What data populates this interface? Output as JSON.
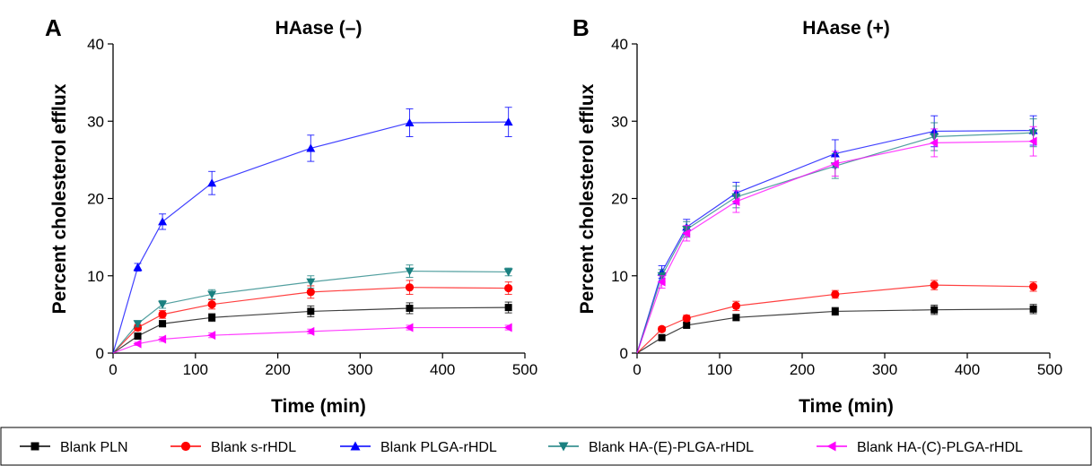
{
  "chart_data": [
    {
      "type": "line",
      "panel_label": "A",
      "title": "HAase (–)",
      "xlabel": "Time (min)",
      "ylabel": "Percent cholesterol efflux",
      "xlim": [
        0,
        500
      ],
      "ylim": [
        0,
        40
      ],
      "xticks": [
        0,
        100,
        200,
        300,
        400,
        500
      ],
      "yticks": [
        0,
        10,
        20,
        30,
        40
      ],
      "x": [
        0,
        30,
        60,
        120,
        240,
        360,
        480
      ],
      "series": [
        {
          "name": "Blank PLN",
          "color": "#000000",
          "marker": "square",
          "values": [
            0,
            2.2,
            3.8,
            4.6,
            5.4,
            5.8,
            5.9
          ],
          "errors": [
            0,
            0.4,
            0.4,
            0.5,
            0.7,
            0.7,
            0.7
          ]
        },
        {
          "name": "Blank s-rHDL",
          "color": "#ff0000",
          "marker": "circle",
          "values": [
            0,
            3.3,
            5.0,
            6.3,
            7.9,
            8.5,
            8.4
          ],
          "errors": [
            0,
            0.4,
            0.5,
            0.6,
            0.8,
            0.9,
            0.8
          ]
        },
        {
          "name": "Blank PLGA-rHDL",
          "color": "#0000ff",
          "marker": "triangle-up",
          "values": [
            0,
            11.1,
            17.0,
            22.0,
            26.5,
            29.8,
            29.9
          ],
          "errors": [
            0,
            0.5,
            1.0,
            1.5,
            1.7,
            1.8,
            1.9
          ]
        },
        {
          "name": "Blank HA-(E)-PLGA-rHDL",
          "color": "#1a8080",
          "marker": "triangle-down",
          "values": [
            0,
            3.8,
            6.3,
            7.6,
            9.2,
            10.6,
            10.5
          ],
          "errors": [
            0,
            0.4,
            0.5,
            0.6,
            0.8,
            0.8,
            0.5
          ]
        },
        {
          "name": "Blank HA-(C)-PLGA-rHDL",
          "color": "#ff00ff",
          "marker": "triangle-left",
          "values": [
            0,
            1.2,
            1.8,
            2.3,
            2.8,
            3.3,
            3.3
          ],
          "errors": [
            0,
            0.2,
            0.3,
            0.3,
            0.3,
            0.3,
            0.3
          ]
        }
      ]
    },
    {
      "type": "line",
      "panel_label": "B",
      "title": "HAase (+)",
      "xlabel": "Time (min)",
      "ylabel": "Percent cholesterol efflux",
      "xlim": [
        0,
        500
      ],
      "ylim": [
        0,
        40
      ],
      "xticks": [
        0,
        100,
        200,
        300,
        400,
        500
      ],
      "yticks": [
        0,
        10,
        20,
        30,
        40
      ],
      "x": [
        0,
        30,
        60,
        120,
        240,
        360,
        480
      ],
      "series": [
        {
          "name": "Blank PLN",
          "color": "#000000",
          "marker": "square",
          "values": [
            0,
            2.0,
            3.6,
            4.6,
            5.4,
            5.6,
            5.7
          ],
          "errors": [
            0,
            0.3,
            0.3,
            0.4,
            0.5,
            0.6,
            0.6
          ]
        },
        {
          "name": "Blank s-rHDL",
          "color": "#ff0000",
          "marker": "circle",
          "values": [
            0,
            3.1,
            4.5,
            6.1,
            7.6,
            8.8,
            8.6
          ],
          "errors": [
            0,
            0.3,
            0.4,
            0.6,
            0.5,
            0.6,
            0.6
          ]
        },
        {
          "name": "Blank PLGA-rHDL",
          "color": "#0000ff",
          "marker": "triangle-up",
          "values": [
            0,
            10.5,
            16.3,
            20.7,
            25.8,
            28.7,
            28.8
          ],
          "errors": [
            0,
            0.8,
            1.0,
            1.4,
            1.8,
            2.0,
            1.9
          ]
        },
        {
          "name": "Blank HA-(E)-PLGA-rHDL",
          "color": "#1a8080",
          "marker": "triangle-down",
          "values": [
            0,
            10.0,
            16.0,
            20.2,
            24.2,
            28.0,
            28.5
          ],
          "errors": [
            0,
            0.8,
            1.0,
            1.4,
            1.6,
            1.8,
            1.8
          ]
        },
        {
          "name": "Blank HA-(C)-PLGA-rHDL",
          "color": "#ff00ff",
          "marker": "triangle-left",
          "values": [
            0,
            9.2,
            15.5,
            19.6,
            24.5,
            27.2,
            27.4
          ],
          "errors": [
            0,
            0.8,
            1.0,
            1.4,
            1.6,
            1.8,
            1.9
          ]
        }
      ]
    }
  ],
  "legend": {
    "placement": "bottom",
    "entries": [
      {
        "label": "Blank PLN",
        "color": "#000000",
        "marker": "square"
      },
      {
        "label": "Blank s-rHDL",
        "color": "#ff0000",
        "marker": "circle"
      },
      {
        "label": "Blank PLGA-rHDL",
        "color": "#0000ff",
        "marker": "triangle-up"
      },
      {
        "label": "Blank HA-(E)-PLGA-rHDL",
        "color": "#1a8080",
        "marker": "triangle-down"
      },
      {
        "label": "Blank HA-(C)-PLGA-rHDL",
        "color": "#ff00ff",
        "marker": "triangle-left"
      }
    ]
  }
}
